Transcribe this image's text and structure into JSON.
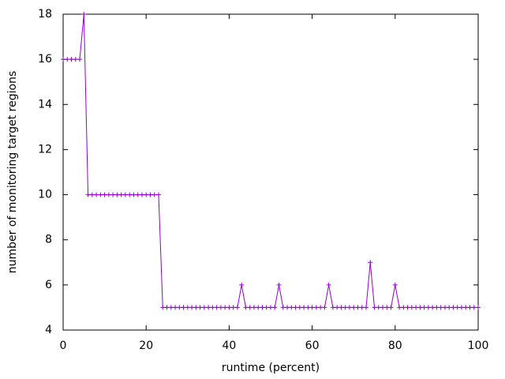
{
  "chart_data": {
    "type": "line",
    "xlabel": "runtime (percent)",
    "ylabel": "number of monitoring target regions",
    "x": [
      0,
      1,
      2,
      3,
      4,
      5,
      6,
      7,
      8,
      9,
      10,
      11,
      12,
      13,
      14,
      15,
      16,
      17,
      18,
      19,
      20,
      21,
      22,
      23,
      24,
      25,
      26,
      27,
      28,
      29,
      30,
      31,
      32,
      33,
      34,
      35,
      36,
      37,
      38,
      39,
      40,
      41,
      42,
      43,
      44,
      45,
      46,
      47,
      48,
      49,
      50,
      51,
      52,
      53,
      54,
      55,
      56,
      57,
      58,
      59,
      60,
      61,
      62,
      63,
      64,
      65,
      66,
      67,
      68,
      69,
      70,
      71,
      72,
      73,
      74,
      75,
      76,
      77,
      78,
      79,
      80,
      81,
      82,
      83,
      84,
      85,
      86,
      87,
      88,
      89,
      90,
      91,
      92,
      93,
      94,
      95,
      96,
      97,
      98,
      99,
      100
    ],
    "series": [
      {
        "color": "#9400d3",
        "values": [
          16,
          16,
          16,
          16,
          16,
          18,
          10,
          10,
          10,
          10,
          10,
          10,
          10,
          10,
          10,
          10,
          10,
          10,
          10,
          10,
          10,
          10,
          10,
          10,
          5,
          5,
          5,
          5,
          5,
          5,
          5,
          5,
          5,
          5,
          5,
          5,
          5,
          5,
          5,
          5,
          5,
          5,
          5,
          6,
          5,
          5,
          5,
          5,
          5,
          5,
          5,
          5,
          6,
          5,
          5,
          5,
          5,
          5,
          5,
          5,
          5,
          5,
          5,
          5,
          6,
          5,
          5,
          5,
          5,
          5,
          5,
          5,
          5,
          5,
          7,
          5,
          5,
          5,
          5,
          5,
          6,
          5,
          5,
          5,
          5,
          5,
          5,
          5,
          5,
          5,
          5,
          5,
          5,
          5,
          5,
          5,
          5,
          5,
          5,
          5,
          5
        ]
      }
    ],
    "xlim": [
      0,
      100
    ],
    "xticks": [
      0,
      20,
      40,
      60,
      80,
      100
    ],
    "ylim": [
      4,
      18
    ],
    "yticks": [
      4,
      6,
      8,
      10,
      12,
      14,
      16,
      18
    ]
  }
}
